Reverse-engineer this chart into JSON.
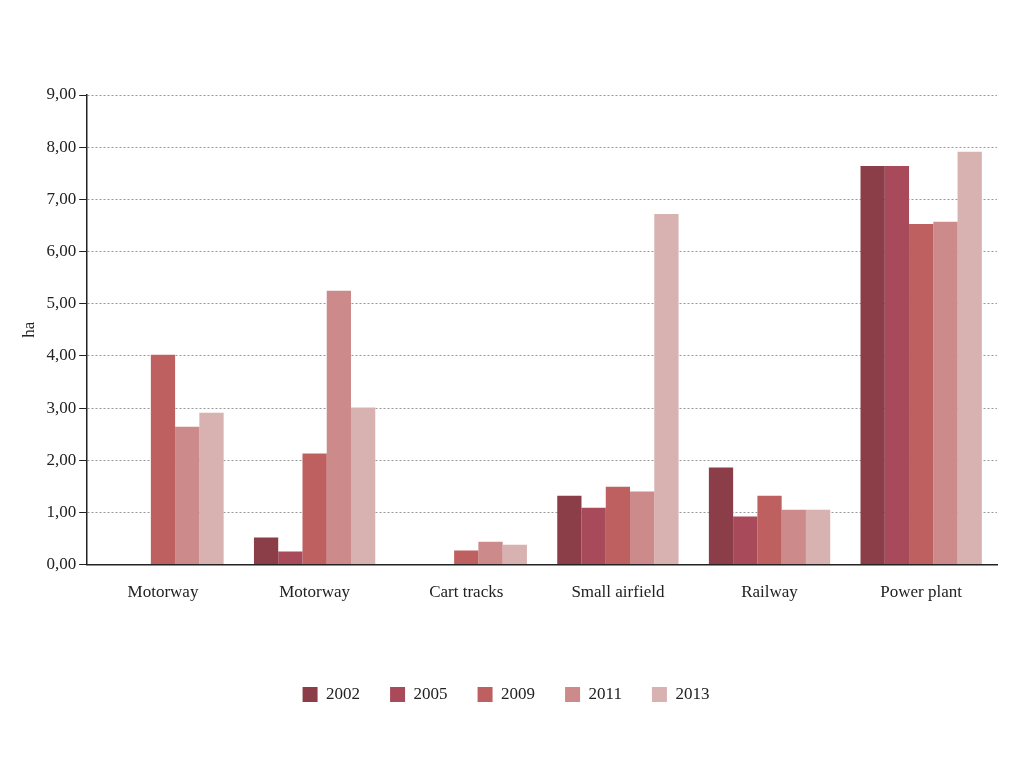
{
  "chart_data": {
    "type": "bar",
    "ylabel": "ha",
    "categories": [
      "Motorway",
      "Motorway",
      "Cart tracks",
      "Small airfield",
      "Railway",
      "Power plant"
    ],
    "series": [
      {
        "name": "2002",
        "color": "#8b3d48",
        "values": [
          null,
          0.52,
          null,
          1.32,
          1.86,
          7.64
        ]
      },
      {
        "name": "2005",
        "color": "#a94a5a",
        "values": [
          null,
          0.25,
          null,
          1.09,
          0.92,
          7.64
        ]
      },
      {
        "name": "2009",
        "color": "#bf6060",
        "values": [
          4.02,
          2.13,
          0.27,
          1.49,
          1.32,
          6.53
        ]
      },
      {
        "name": "2011",
        "color": "#cc8a8a",
        "values": [
          2.64,
          5.25,
          0.44,
          1.4,
          1.05,
          6.57
        ]
      },
      {
        "name": "2013",
        "color": "#d8b1b1",
        "values": [
          2.91,
          3.01,
          0.38,
          6.72,
          1.05,
          7.91
        ]
      }
    ],
    "ylim": [
      0,
      9
    ],
    "yticks": [
      {
        "value": 0,
        "label": "0,00"
      },
      {
        "value": 1,
        "label": "1,00"
      },
      {
        "value": 2,
        "label": "2,00"
      },
      {
        "value": 3,
        "label": "3,00"
      },
      {
        "value": 4,
        "label": "4,00"
      },
      {
        "value": 5,
        "label": "5,00"
      },
      {
        "value": 6,
        "label": "6,00"
      },
      {
        "value": 7,
        "label": "7,00"
      },
      {
        "value": 8,
        "label": "8,00"
      },
      {
        "value": 9,
        "label": "9,00"
      }
    ],
    "grid": "y",
    "legend": "bottom"
  }
}
